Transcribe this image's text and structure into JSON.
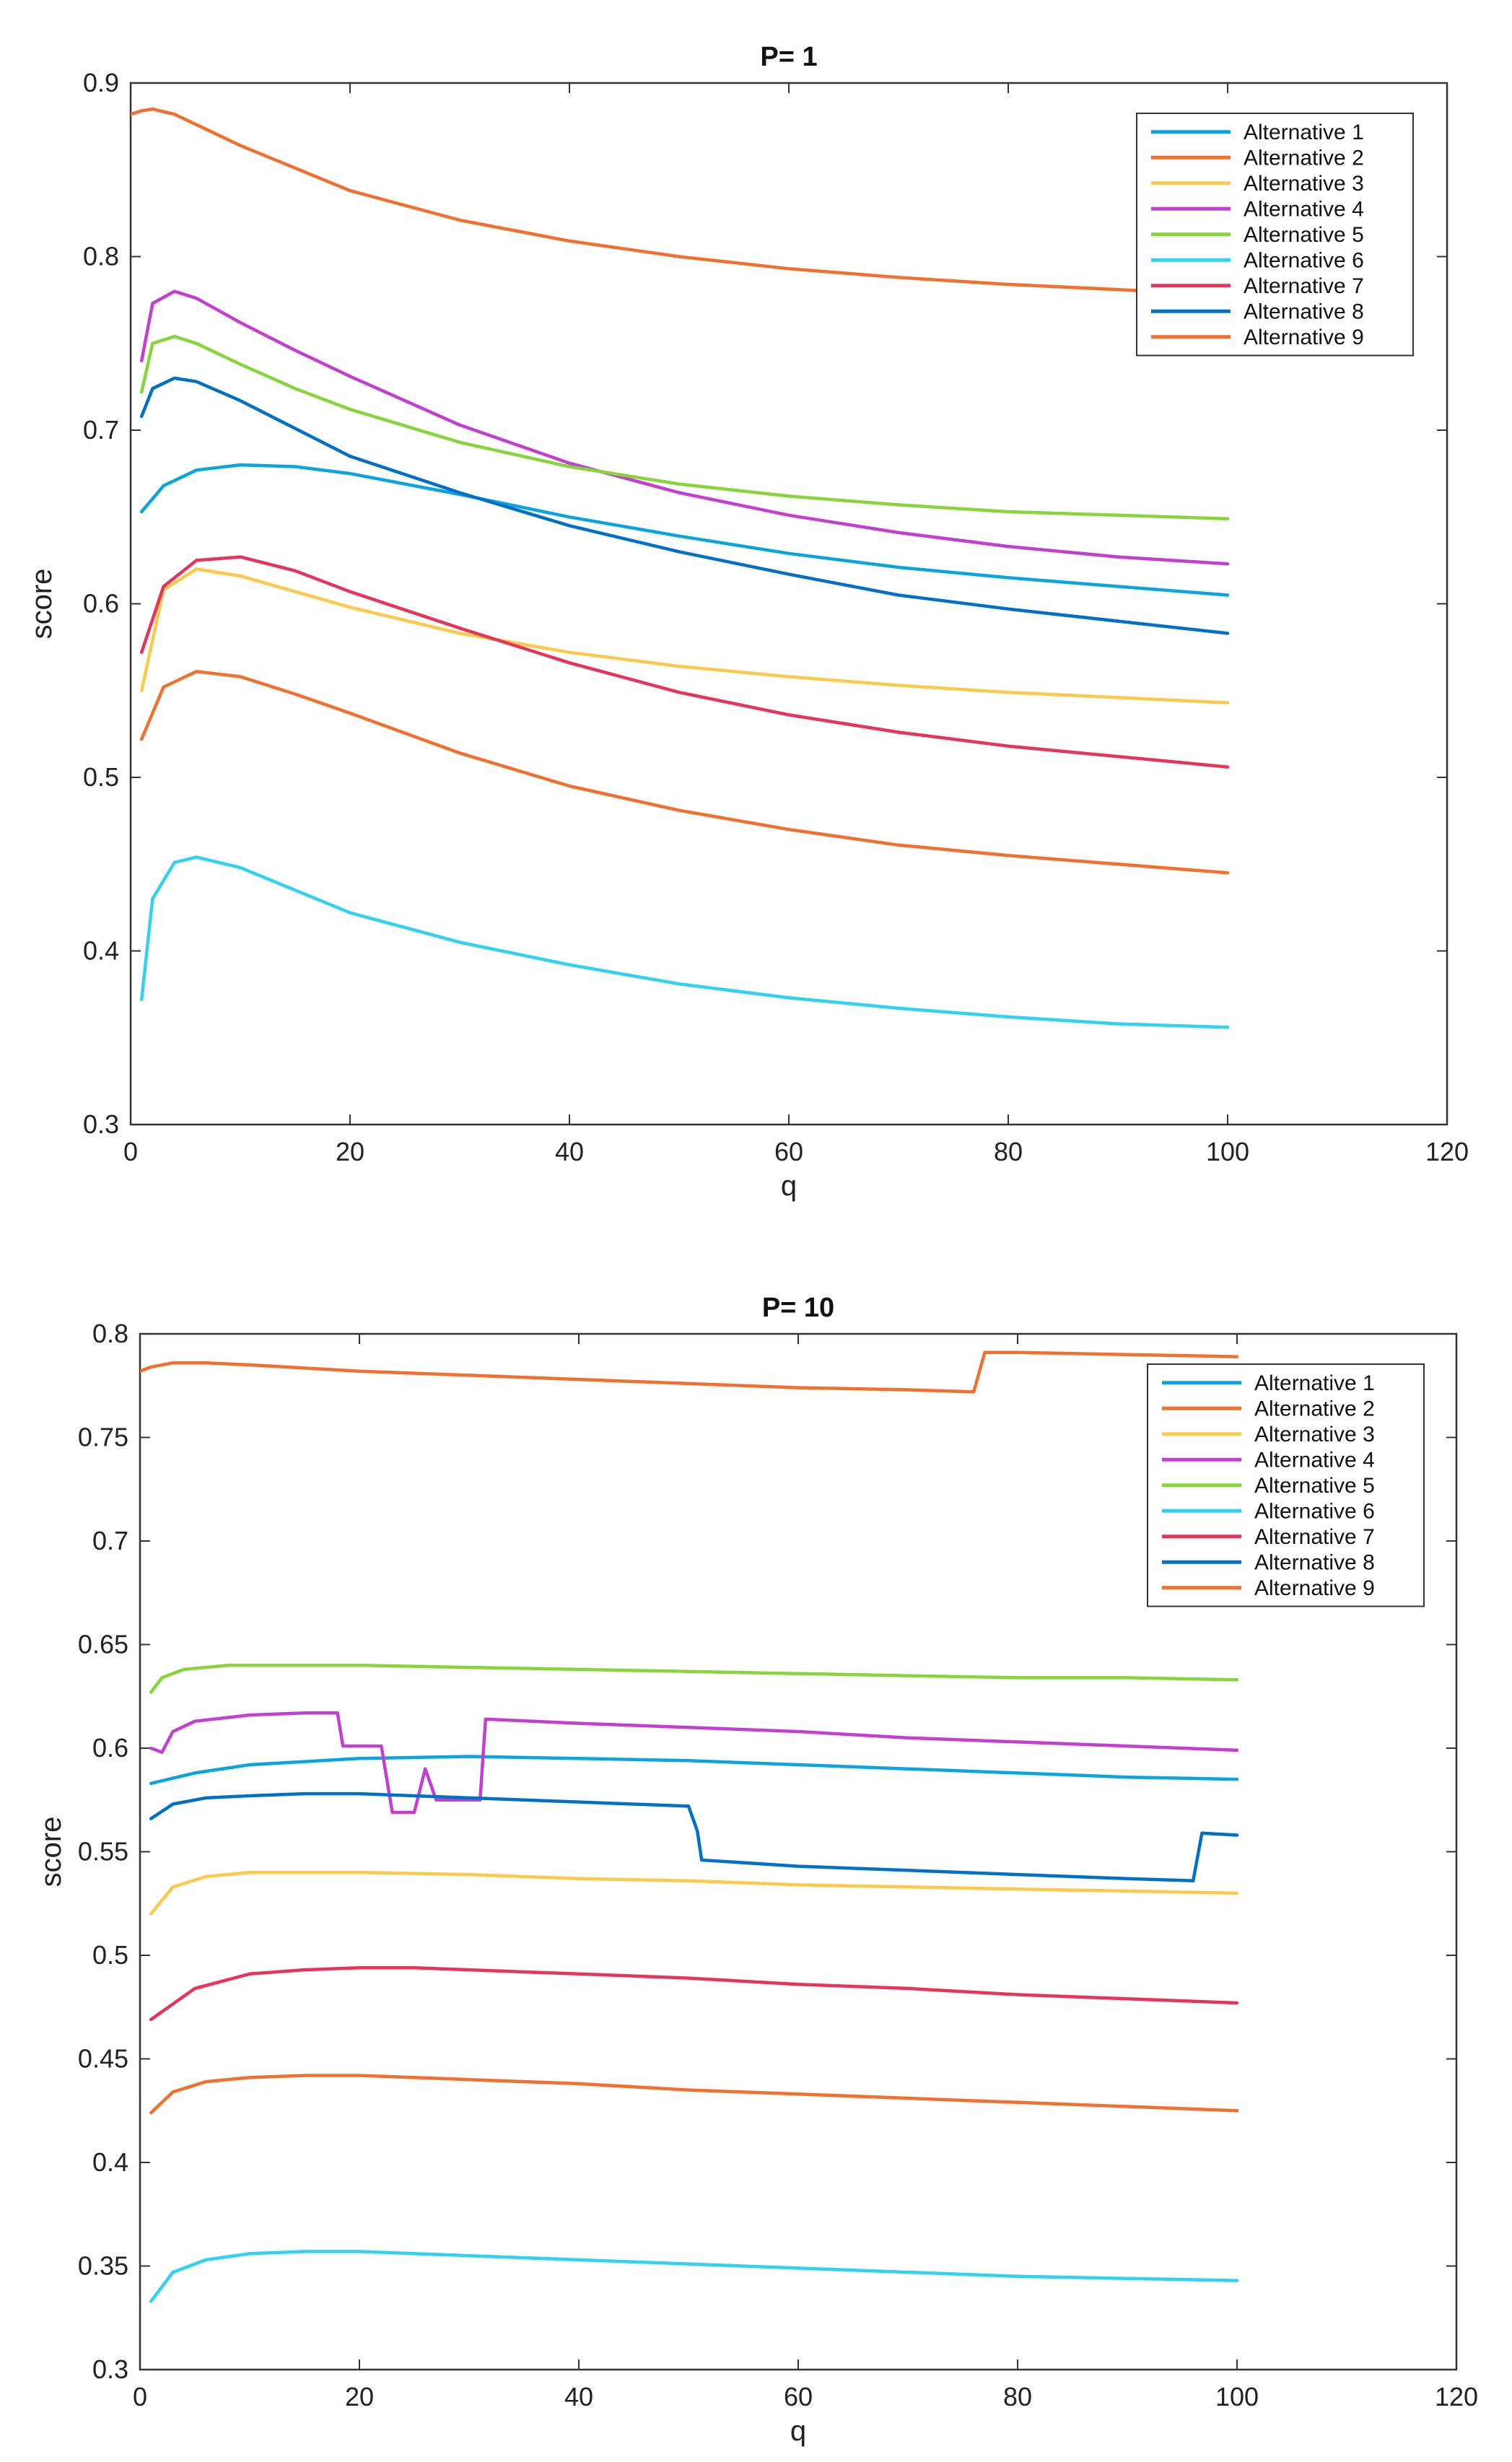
{
  "chart_data": [
    {
      "type": "line",
      "title": "P= 1",
      "xlabel": "q",
      "ylabel": "score",
      "xlim": [
        0,
        120
      ],
      "ylim": [
        0.3,
        0.9
      ],
      "xticks": [
        0,
        20,
        40,
        60,
        80,
        100,
        120
      ],
      "yticks": [
        0.3,
        0.4,
        0.5,
        0.6,
        0.7,
        0.8,
        0.9
      ],
      "ytick_labels": [
        "0.3",
        "0.4",
        "0.5",
        "0.6",
        "0.7",
        "0.8",
        "0.9"
      ],
      "legend_location": "top-right",
      "series": [
        {
          "name": "Alternative 1",
          "color": "#0aa5e0",
          "x": [
            1,
            3,
            6,
            10,
            15,
            20,
            30,
            40,
            50,
            60,
            70,
            80,
            90,
            100
          ],
          "values": [
            0.653,
            0.668,
            0.677,
            0.68,
            0.679,
            0.675,
            0.663,
            0.65,
            0.639,
            0.629,
            0.621,
            0.615,
            0.61,
            0.605
          ]
        },
        {
          "name": "Alternative 2",
          "color": "#f36f2e",
          "x": [
            1,
            3,
            6,
            10,
            15,
            20,
            30,
            40,
            50,
            60,
            70,
            80,
            90,
            100
          ],
          "values": [
            0.522,
            0.552,
            0.561,
            0.558,
            0.548,
            0.537,
            0.514,
            0.495,
            0.481,
            0.47,
            0.461,
            0.455,
            0.45,
            0.445
          ]
        },
        {
          "name": "Alternative 3",
          "color": "#fcc94c",
          "x": [
            1,
            3,
            6,
            10,
            15,
            20,
            30,
            40,
            50,
            60,
            70,
            80,
            90,
            100
          ],
          "values": [
            0.55,
            0.608,
            0.62,
            0.616,
            0.607,
            0.598,
            0.583,
            0.572,
            0.564,
            0.558,
            0.553,
            0.549,
            0.546,
            0.543
          ]
        },
        {
          "name": "Alternative 4",
          "color": "#c43ed2",
          "x": [
            1,
            2,
            4,
            6,
            10,
            15,
            20,
            30,
            40,
            50,
            60,
            70,
            80,
            90,
            100
          ],
          "values": [
            0.74,
            0.773,
            0.78,
            0.776,
            0.762,
            0.746,
            0.731,
            0.703,
            0.681,
            0.664,
            0.651,
            0.641,
            0.633,
            0.627,
            0.623
          ]
        },
        {
          "name": "Alternative 5",
          "color": "#86d63a",
          "x": [
            1,
            2,
            4,
            6,
            10,
            15,
            20,
            30,
            40,
            50,
            60,
            70,
            80,
            90,
            100
          ],
          "values": [
            0.722,
            0.75,
            0.754,
            0.75,
            0.738,
            0.724,
            0.712,
            0.693,
            0.679,
            0.669,
            0.662,
            0.657,
            0.653,
            0.651,
            0.649
          ]
        },
        {
          "name": "Alternative 6",
          "color": "#2fd2f0",
          "x": [
            1,
            2,
            4,
            6,
            10,
            15,
            20,
            30,
            40,
            50,
            60,
            70,
            80,
            90,
            100
          ],
          "values": [
            0.372,
            0.43,
            0.451,
            0.454,
            0.448,
            0.435,
            0.422,
            0.405,
            0.392,
            0.381,
            0.373,
            0.367,
            0.362,
            0.358,
            0.356
          ]
        },
        {
          "name": "Alternative 7",
          "color": "#e8345a",
          "x": [
            1,
            3,
            6,
            10,
            15,
            20,
            30,
            40,
            50,
            60,
            70,
            80,
            90,
            100
          ],
          "values": [
            0.572,
            0.61,
            0.625,
            0.627,
            0.619,
            0.607,
            0.586,
            0.566,
            0.549,
            0.536,
            0.526,
            0.518,
            0.512,
            0.506
          ]
        },
        {
          "name": "Alternative 8",
          "color": "#0070c8",
          "x": [
            1,
            2,
            4,
            6,
            10,
            15,
            20,
            30,
            40,
            50,
            60,
            70,
            80,
            90,
            100
          ],
          "values": [
            0.708,
            0.724,
            0.73,
            0.728,
            0.717,
            0.701,
            0.685,
            0.664,
            0.645,
            0.63,
            0.617,
            0.605,
            0.597,
            0.59,
            0.583
          ]
        },
        {
          "name": "Alternative 9",
          "color": "#f36f2e",
          "x": [
            0,
            1,
            2,
            4,
            6,
            10,
            20,
            30,
            40,
            50,
            60,
            70,
            80,
            90,
            100
          ],
          "values": [
            0.882,
            0.884,
            0.885,
            0.882,
            0.876,
            0.864,
            0.838,
            0.821,
            0.809,
            0.8,
            0.793,
            0.788,
            0.784,
            0.781,
            0.778
          ]
        }
      ]
    },
    {
      "type": "line",
      "title": "P= 10",
      "xlabel": "q",
      "ylabel": "score",
      "xlim": [
        0,
        120
      ],
      "ylim": [
        0.3,
        0.8
      ],
      "xticks": [
        0,
        20,
        40,
        60,
        80,
        100,
        120
      ],
      "yticks": [
        0.3,
        0.35,
        0.4,
        0.45,
        0.5,
        0.55,
        0.6,
        0.65,
        0.7,
        0.75,
        0.8
      ],
      "ytick_labels": [
        "0.3",
        "0.35",
        "0.4",
        "0.45",
        "0.5",
        "0.55",
        "0.6",
        "0.65",
        "0.7",
        "0.75",
        "0.8"
      ],
      "legend_location": "top-right",
      "series": [
        {
          "name": "Alternative 1",
          "color": "#0aa5e0",
          "x": [
            1,
            5,
            10,
            20,
            30,
            40,
            50,
            60,
            70,
            80,
            90,
            100
          ],
          "values": [
            0.583,
            0.588,
            0.592,
            0.595,
            0.596,
            0.595,
            0.594,
            0.592,
            0.59,
            0.588,
            0.586,
            0.585
          ]
        },
        {
          "name": "Alternative 2",
          "color": "#f36f2e",
          "x": [
            1,
            3,
            6,
            10,
            15,
            20,
            30,
            40,
            50,
            60,
            70,
            80,
            90,
            100
          ],
          "values": [
            0.424,
            0.434,
            0.439,
            0.441,
            0.442,
            0.442,
            0.44,
            0.438,
            0.435,
            0.433,
            0.431,
            0.429,
            0.427,
            0.425
          ]
        },
        {
          "name": "Alternative 3",
          "color": "#fcc94c",
          "x": [
            1,
            3,
            6,
            10,
            15,
            20,
            30,
            40,
            50,
            60,
            70,
            80,
            90,
            100
          ],
          "values": [
            0.52,
            0.533,
            0.538,
            0.54,
            0.54,
            0.54,
            0.539,
            0.537,
            0.536,
            0.534,
            0.533,
            0.532,
            0.531,
            0.53
          ]
        },
        {
          "name": "Alternative 4",
          "color": "#c43ed2",
          "x": [
            1,
            2,
            3,
            5,
            10,
            15,
            18,
            18.5,
            22,
            22.5,
            23,
            25,
            26,
            27,
            31,
            31.5,
            40,
            50,
            60,
            70,
            80,
            90,
            100
          ],
          "values": [
            0.6,
            0.598,
            0.608,
            0.613,
            0.616,
            0.617,
            0.617,
            0.601,
            0.601,
            0.585,
            0.569,
            0.569,
            0.59,
            0.575,
            0.575,
            0.614,
            0.612,
            0.61,
            0.608,
            0.605,
            0.603,
            0.601,
            0.599
          ]
        },
        {
          "name": "Alternative 5",
          "color": "#86d63a",
          "x": [
            1,
            2,
            4,
            8,
            15,
            20,
            30,
            40,
            50,
            60,
            70,
            80,
            90,
            100
          ],
          "values": [
            0.627,
            0.634,
            0.638,
            0.64,
            0.64,
            0.64,
            0.639,
            0.638,
            0.637,
            0.636,
            0.635,
            0.634,
            0.634,
            0.633
          ]
        },
        {
          "name": "Alternative 6",
          "color": "#2fd2f0",
          "x": [
            1,
            3,
            6,
            10,
            15,
            20,
            30,
            40,
            50,
            60,
            70,
            80,
            90,
            100
          ],
          "values": [
            0.333,
            0.347,
            0.353,
            0.356,
            0.357,
            0.357,
            0.355,
            0.353,
            0.351,
            0.349,
            0.347,
            0.345,
            0.344,
            0.343
          ]
        },
        {
          "name": "Alternative 7",
          "color": "#e8345a",
          "x": [
            1,
            5,
            10,
            15,
            20,
            25,
            30,
            40,
            50,
            60,
            70,
            80,
            90,
            100
          ],
          "values": [
            0.469,
            0.484,
            0.491,
            0.493,
            0.494,
            0.494,
            0.493,
            0.491,
            0.489,
            0.486,
            0.484,
            0.481,
            0.479,
            0.477
          ]
        },
        {
          "name": "Alternative 8",
          "color": "#0070c8",
          "x": [
            1,
            3,
            6,
            10,
            15,
            20,
            30,
            40,
            50,
            50.8,
            51.2,
            60,
            70,
            80,
            90,
            96,
            96.8,
            100
          ],
          "values": [
            0.566,
            0.573,
            0.576,
            0.577,
            0.578,
            0.578,
            0.576,
            0.574,
            0.572,
            0.56,
            0.546,
            0.543,
            0.541,
            0.539,
            0.537,
            0.536,
            0.559,
            0.558
          ]
        },
        {
          "name": "Alternative 9",
          "color": "#f36f2e",
          "x": [
            0,
            1,
            3,
            6,
            10,
            20,
            30,
            40,
            50,
            60,
            70,
            76,
            77,
            80,
            90,
            100
          ],
          "values": [
            0.782,
            0.784,
            0.786,
            0.786,
            0.785,
            0.782,
            0.78,
            0.778,
            0.776,
            0.774,
            0.773,
            0.772,
            0.791,
            0.791,
            0.79,
            0.789
          ]
        }
      ]
    }
  ]
}
